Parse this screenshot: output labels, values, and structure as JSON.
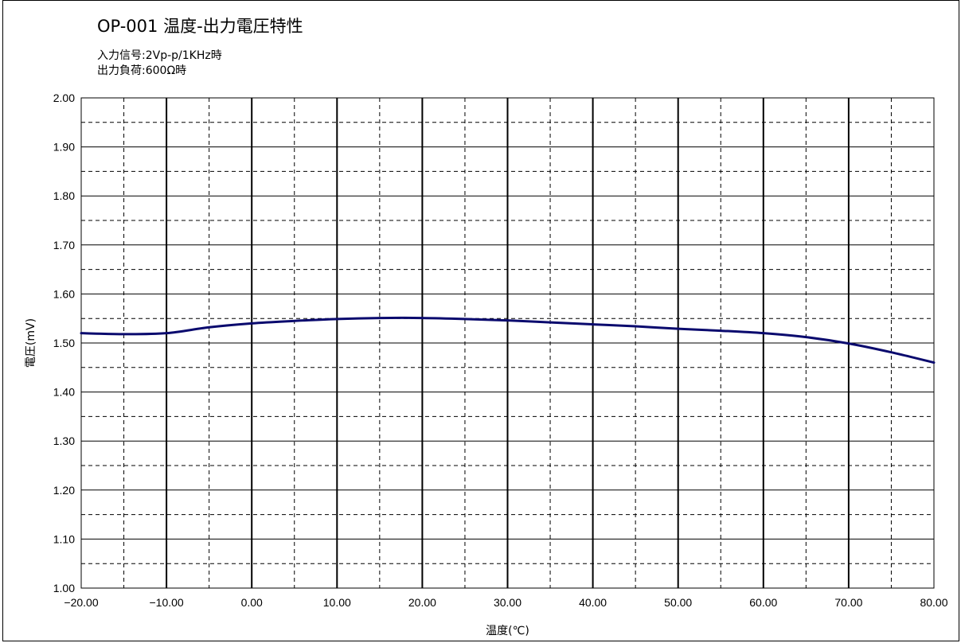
{
  "chart_data": {
    "type": "line",
    "title": "OP-001 温度-出力電圧特性",
    "conditions": [
      "入力信号:2Vp-p/1KHz時",
      "出力負荷:600Ω時"
    ],
    "xlabel": "温度(℃)",
    "ylabel": "電圧(mV)",
    "xlim": [
      -20,
      80
    ],
    "ylim": [
      1.0,
      2.0
    ],
    "x_ticks": [
      "−20.00",
      "−10.00",
      "0.00",
      "10.00",
      "20.00",
      "30.00",
      "40.00",
      "50.00",
      "60.00",
      "70.00",
      "80.00"
    ],
    "y_ticks": [
      "1.00",
      "1.10",
      "1.20",
      "1.30",
      "1.40",
      "1.50",
      "1.60",
      "1.70",
      "1.80",
      "1.90",
      "2.00"
    ],
    "grid": true,
    "series": [
      {
        "color": "#0a0a6e",
        "x": [
          -20,
          -15,
          -10,
          -5,
          0,
          5,
          10,
          15,
          20,
          25,
          30,
          35,
          40,
          45,
          50,
          55,
          60,
          65,
          70,
          75,
          80
        ],
        "values": [
          1.52,
          1.518,
          1.52,
          1.532,
          1.54,
          1.545,
          1.549,
          1.551,
          1.551,
          1.549,
          1.546,
          1.542,
          1.538,
          1.534,
          1.529,
          1.525,
          1.52,
          1.512,
          1.499,
          1.481,
          1.46
        ]
      }
    ]
  }
}
